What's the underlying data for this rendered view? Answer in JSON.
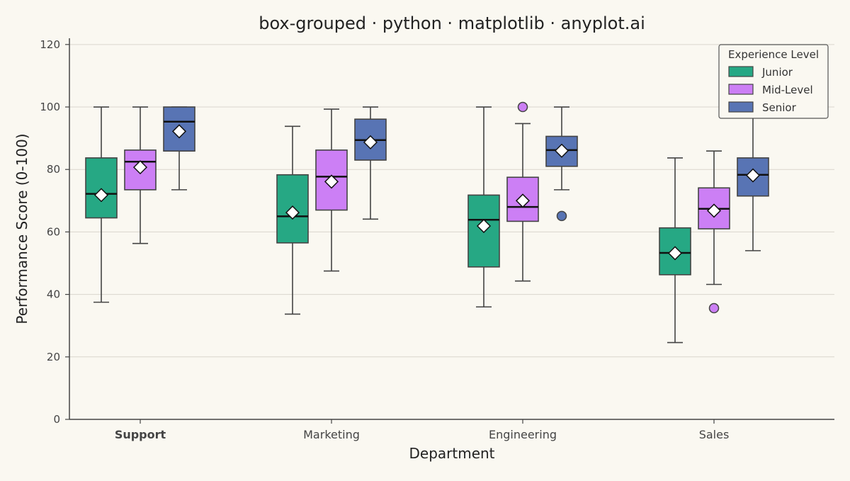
{
  "chart_data": {
    "type": "box",
    "title": "box-grouped · python · matplotlib · anyplot.ai",
    "xlabel": "Department",
    "ylabel": "Performance Score (0-100)",
    "ylim": [
      0,
      122
    ],
    "yticks": [
      0,
      20,
      40,
      60,
      80,
      100,
      120
    ],
    "grid": "horizontal",
    "legend_title": "Experience Level",
    "legend_position": "top-right",
    "categories": [
      "Support",
      "Marketing",
      "Engineering",
      "Sales"
    ],
    "bold_category": "Support",
    "series": [
      {
        "name": "Junior",
        "color": "#26a884",
        "boxes": [
          {
            "whisker_low": 37.5,
            "q1": 64.5,
            "median": 72.2,
            "q3": 83.7,
            "whisker_high": 100,
            "mean": 71.8,
            "outliers": []
          },
          {
            "whisker_low": 33.7,
            "q1": 56.5,
            "median": 65.0,
            "q3": 78.3,
            "whisker_high": 93.8,
            "mean": 66.2,
            "outliers": []
          },
          {
            "whisker_low": 36.0,
            "q1": 48.8,
            "median": 63.9,
            "q3": 71.8,
            "whisker_high": 100,
            "mean": 61.9,
            "outliers": []
          },
          {
            "whisker_low": 24.6,
            "q1": 46.3,
            "median": 53.3,
            "q3": 61.3,
            "whisker_high": 83.7,
            "mean": 53.2,
            "outliers": []
          }
        ]
      },
      {
        "name": "Mid-Level",
        "color": "#cc7ff5",
        "boxes": [
          {
            "whisker_low": 56.3,
            "q1": 73.5,
            "median": 82.5,
            "q3": 86.2,
            "whisker_high": 100,
            "mean": 80.7,
            "outliers": []
          },
          {
            "whisker_low": 47.5,
            "q1": 67.0,
            "median": 77.7,
            "q3": 86.2,
            "whisker_high": 99.3,
            "mean": 76.1,
            "outliers": []
          },
          {
            "whisker_low": 44.3,
            "q1": 63.4,
            "median": 68.0,
            "q3": 77.5,
            "whisker_high": 94.7,
            "mean": 70.0,
            "outliers": [
              100
            ]
          },
          {
            "whisker_low": 43.2,
            "q1": 61.0,
            "median": 67.4,
            "q3": 74.1,
            "whisker_high": 85.9,
            "mean": 66.8,
            "outliers": [
              35.6
            ]
          }
        ]
      },
      {
        "name": "Senior",
        "color": "#5874b4",
        "boxes": [
          {
            "whisker_low": 73.5,
            "q1": 85.9,
            "median": 95.3,
            "q3": 100,
            "whisker_high": 100,
            "mean": 92.2,
            "outliers": []
          },
          {
            "whisker_low": 64.1,
            "q1": 83.0,
            "median": 89.4,
            "q3": 96.1,
            "whisker_high": 100,
            "mean": 88.7,
            "outliers": []
          },
          {
            "whisker_low": 73.5,
            "q1": 81.0,
            "median": 86.2,
            "q3": 90.6,
            "whisker_high": 100,
            "mean": 86.0,
            "outliers": [
              65.1
            ]
          },
          {
            "whisker_low": 54.0,
            "q1": 71.5,
            "median": 78.3,
            "q3": 83.7,
            "whisker_high": 100,
            "mean": 78.1,
            "outliers": []
          }
        ]
      }
    ]
  }
}
